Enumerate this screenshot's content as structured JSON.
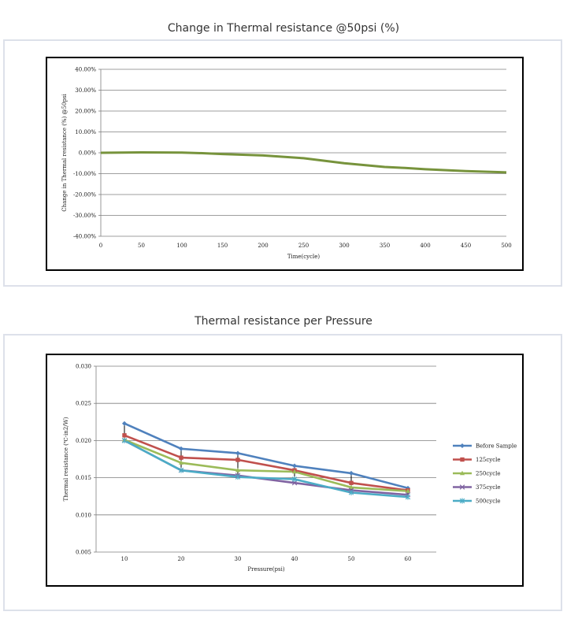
{
  "chart_data": [
    {
      "type": "line",
      "title": "Change in Thermal resistance @50psi (%)",
      "xlabel": "Time(cycle)",
      "ylabel": "Change in Thermal resistance (%) @50psi",
      "xlim": [
        0,
        500
      ],
      "ylim": [
        -40,
        40
      ],
      "xticks": [
        "0",
        "50",
        "100",
        "150",
        "200",
        "250",
        "300",
        "350",
        "400",
        "450",
        "500"
      ],
      "yticks": [
        "40.00%",
        "30.00%",
        "20.00%",
        "10.00%",
        "0.00%",
        "-10.00%",
        "-20.00%",
        "-30.00%",
        "-40.00%"
      ],
      "grid": true,
      "colors": [
        "#77933c"
      ],
      "series": [
        {
          "x": [
            0,
            25,
            50,
            100,
            125,
            150,
            200,
            250,
            300,
            350,
            375,
            400,
            450,
            500
          ],
          "values": [
            0,
            0.1,
            0.2,
            0.1,
            -0.2,
            -0.6,
            -1.3,
            -2.6,
            -5.0,
            -6.8,
            -7.3,
            -7.9,
            -8.8,
            -9.4
          ]
        }
      ]
    },
    {
      "type": "line",
      "title": "Thermal resistance  per Pressure",
      "xlabel": "Pressure(psi)",
      "ylabel": "Thermal resistance (℃-in2/W)",
      "categories": [
        "10",
        "20",
        "30",
        "40",
        "50",
        "60"
      ],
      "ylim": [
        0.005,
        0.03
      ],
      "yticks": [
        "0.030",
        "0.025",
        "0.020",
        "0.015",
        "0.010",
        "0.005"
      ],
      "grid": true,
      "legend": "right",
      "series": [
        {
          "name": "Before Sample",
          "color": "#4f81bd",
          "marker": "diamond",
          "values": [
            0.0223,
            0.0189,
            0.0183,
            0.0166,
            0.0156,
            0.0136
          ]
        },
        {
          "name": "125cycle",
          "color": "#c0504d",
          "marker": "square",
          "values": [
            0.0207,
            0.0177,
            0.0174,
            0.016,
            0.0143,
            0.0133
          ]
        },
        {
          "name": "250cycle",
          "color": "#9bbb59",
          "marker": "triangle",
          "values": [
            0.0201,
            0.017,
            0.016,
            0.0158,
            0.0137,
            0.0132
          ]
        },
        {
          "name": "375cycle",
          "color": "#8064a2",
          "marker": "x",
          "values": [
            0.02,
            0.016,
            0.0153,
            0.0143,
            0.0133,
            0.0127
          ]
        },
        {
          "name": "500cycle",
          "color": "#4bacc6",
          "marker": "star",
          "values": [
            0.02,
            0.016,
            0.0151,
            0.0148,
            0.013,
            0.0124
          ]
        }
      ]
    }
  ]
}
